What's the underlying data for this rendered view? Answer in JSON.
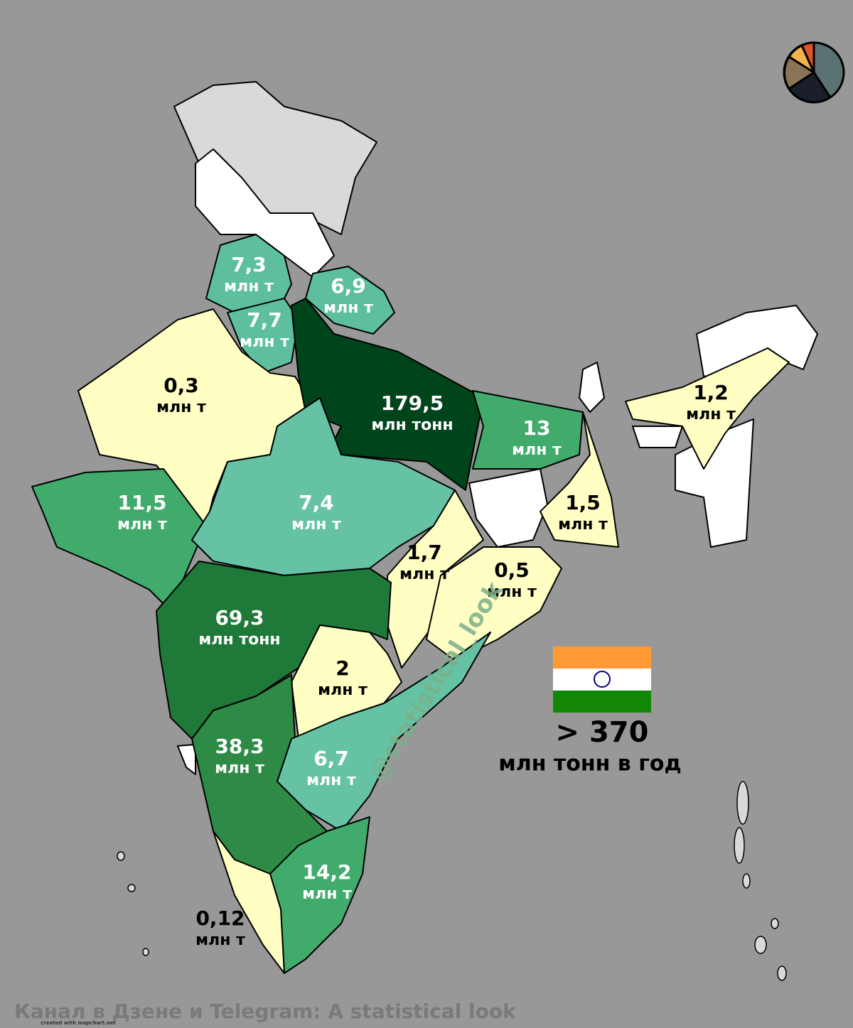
{
  "map": {
    "regions": [
      {
        "value": "7,3",
        "unit": "млн т",
        "color": "#5dbf9d",
        "label_color": "#ffffff"
      },
      {
        "value": "6,9",
        "unit": "млн т",
        "color": "#5dbf9d",
        "label_color": "#ffffff"
      },
      {
        "value": "7,7",
        "unit": "млн т",
        "color": "#5dbf9d",
        "label_color": "#ffffff"
      },
      {
        "value": "0,3",
        "unit": "млн т",
        "color": "#ffffc4",
        "label_color": "#000000"
      },
      {
        "value": "179,5",
        "unit": "млн тонн",
        "color": "#00441b",
        "label_color": "#ffffff"
      },
      {
        "value": "13",
        "unit": "млн т",
        "color": "#41ab6c",
        "label_color": "#ffffff"
      },
      {
        "value": "1,2",
        "unit": "млн т",
        "color": "#ffffc4",
        "label_color": "#000000"
      },
      {
        "value": "11,5",
        "unit": "млн т",
        "color": "#41ab6c",
        "label_color": "#ffffff"
      },
      {
        "value": "7,4",
        "unit": "млн т",
        "color": "#66c2a4",
        "label_color": "#ffffff"
      },
      {
        "value": "1,5",
        "unit": "млн т",
        "color": "#ffffc4",
        "label_color": "#000000"
      },
      {
        "value": "1,7",
        "unit": "млн т",
        "color": "#ffffc4",
        "label_color": "#000000"
      },
      {
        "value": "0,5",
        "unit": "млн т",
        "color": "#ffffc4",
        "label_color": "#000000"
      },
      {
        "value": "69,3",
        "unit": "млн тонн",
        "color": "#1f7a3a",
        "label_color": "#ffffff"
      },
      {
        "value": "2",
        "unit": "млн т",
        "color": "#ffffc4",
        "label_color": "#000000"
      },
      {
        "value": "38,3",
        "unit": "млн т",
        "color": "#2e8b46",
        "label_color": "#ffffff"
      },
      {
        "value": "6,7",
        "unit": "млн т",
        "color": "#66c2a4",
        "label_color": "#ffffff"
      },
      {
        "value": "14,2",
        "unit": "млн т",
        "color": "#41ab6c",
        "label_color": "#ffffff"
      },
      {
        "value": "0,12",
        "unit": "млн т",
        "color": "#ffffc4",
        "label_color": "#000000"
      }
    ],
    "total": "> 370",
    "total_unit": "млн тонн в год",
    "watermark": "@statistical_look",
    "credit": "created with mapchart.net",
    "footer": "Канал в Дзене и Telegram: A statistical look"
  }
}
